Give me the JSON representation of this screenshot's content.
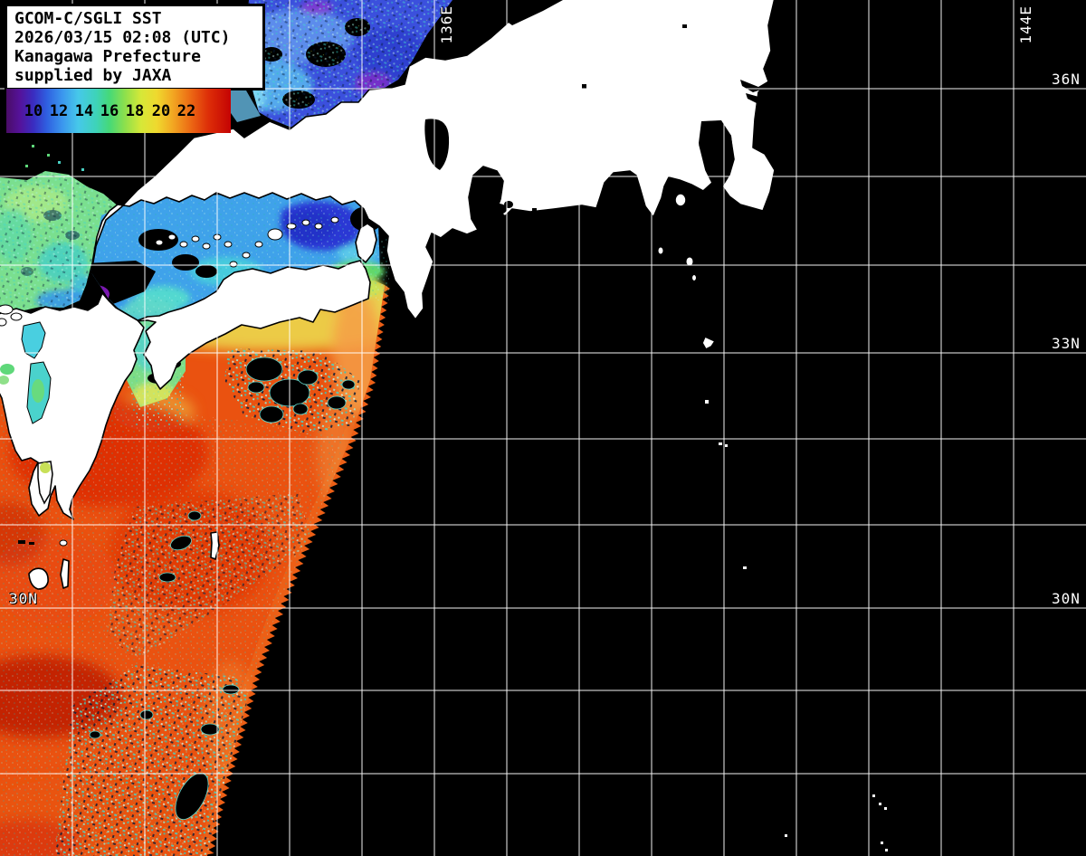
{
  "header": {
    "line1": "GCOM-C/SGLI SST",
    "line2": "2026/03/15 02:08 (UTC)",
    "line3": "Kanagawa Prefecture",
    "line4": "supplied by JAXA"
  },
  "colorbar": {
    "ticks": [
      "10",
      "12",
      "14",
      "16",
      "18",
      "20",
      "22"
    ],
    "gradient_colors": [
      "#4a0d66",
      "#3a2cc0",
      "#2f5fe0",
      "#3b97ee",
      "#46c8ea",
      "#3ed3b9",
      "#46d977",
      "#8fe04b",
      "#d6e838",
      "#efd92e",
      "#f2a822",
      "#ec6a14",
      "#dd2e08",
      "#c40303"
    ]
  },
  "grid": {
    "e136": "136E",
    "e144": "144E",
    "n36": "36N",
    "n33": "33N",
    "n30_right": "30N",
    "n30_left": "30N"
  },
  "map_colors": {
    "no_data": "#000000",
    "land": "#ffffff",
    "coastline": "#000000",
    "gridline": "#ffffff",
    "warm_water": "#ea5210",
    "hot_core": "#c40303",
    "cool_inland_sea": "#3fa2ea",
    "cold_basin": "#2c38d4",
    "west_green_sea": "#7adf8f",
    "north_blue_sea": "#3b50dd",
    "cloud_speckle": "#8ff0dc"
  }
}
